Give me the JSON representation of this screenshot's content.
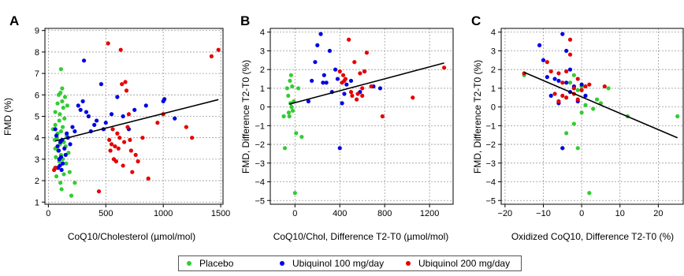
{
  "colors": {
    "placebo": "#33cc33",
    "ubiquinol100": "#0000e6",
    "ubiquinol200": "#e60000",
    "regression": "#000000",
    "grid": "#9a9a9a"
  },
  "legend": {
    "items": [
      {
        "label": "Placebo",
        "color": "#33cc33"
      },
      {
        "label": "Ubiquinol 100 mg/day",
        "color": "#0000e6"
      },
      {
        "label": "Ubiquinol 200 mg/day",
        "color": "#e60000"
      }
    ]
  },
  "chart_data": [
    {
      "panel": "A",
      "type": "scatter",
      "xlabel": "CoQ10/Cholesterol (µmol/mol)",
      "ylabel": "FMD (%)",
      "xlim": [
        -30,
        1520
      ],
      "ylim": [
        0.9,
        9.1
      ],
      "xticks": [
        0,
        500,
        1000,
        1500
      ],
      "yticks": [
        1,
        2,
        3,
        4,
        5,
        6,
        7,
        8,
        9
      ],
      "grid": true,
      "regression": [
        [
          60,
          3.85
        ],
        [
          1480,
          5.78
        ]
      ],
      "series": [
        {
          "name": "Placebo",
          "color": "#33cc33",
          "points": [
            [
              40,
              4.4
            ],
            [
              55,
              3.9
            ],
            [
              60,
              5.2
            ],
            [
              60,
              4.6
            ],
            [
              65,
              3.1
            ],
            [
              70,
              2.6
            ],
            [
              70,
              2.2
            ],
            [
              75,
              4.0
            ],
            [
              80,
              5.6
            ],
            [
              85,
              3.4
            ],
            [
              90,
              6.0
            ],
            [
              95,
              4.8
            ],
            [
              95,
              2.9
            ],
            [
              100,
              5.1
            ],
            [
              100,
              3.7
            ],
            [
              105,
              6.1
            ],
            [
              105,
              1.9
            ],
            [
              110,
              7.2
            ],
            [
              110,
              4.3
            ],
            [
              110,
              3.2
            ],
            [
              115,
              1.6
            ],
            [
              120,
              6.3
            ],
            [
              120,
              5.7
            ],
            [
              125,
              4.5
            ],
            [
              125,
              3.0
            ],
            [
              130,
              5.4
            ],
            [
              135,
              3.8
            ],
            [
              135,
              2.3
            ],
            [
              140,
              4.9
            ],
            [
              145,
              5.9
            ],
            [
              150,
              3.6
            ],
            [
              155,
              2.8
            ],
            [
              160,
              4.1
            ],
            [
              165,
              5.5
            ],
            [
              175,
              3.3
            ],
            [
              185,
              2.4
            ],
            [
              200,
              1.3
            ],
            [
              230,
              1.9
            ],
            [
              60,
              3.5
            ],
            [
              80,
              4.2
            ]
          ]
        },
        {
          "name": "Ubiquinol 100 mg/day",
          "color": "#0000e6",
          "points": [
            [
              60,
              4.4
            ],
            [
              70,
              4.1
            ],
            [
              80,
              3.6
            ],
            [
              85,
              2.6
            ],
            [
              90,
              3.4
            ],
            [
              95,
              3.0
            ],
            [
              100,
              2.7
            ],
            [
              105,
              3.8
            ],
            [
              110,
              3.1
            ],
            [
              115,
              2.5
            ],
            [
              120,
              3.9
            ],
            [
              125,
              2.8
            ],
            [
              140,
              3.5
            ],
            [
              150,
              3.2
            ],
            [
              160,
              4.2
            ],
            [
              170,
              4.0
            ],
            [
              190,
              3.7
            ],
            [
              210,
              4.5
            ],
            [
              230,
              4.3
            ],
            [
              260,
              5.5
            ],
            [
              280,
              5.3
            ],
            [
              300,
              5.7
            ],
            [
              310,
              7.6
            ],
            [
              330,
              5.2
            ],
            [
              350,
              5.0
            ],
            [
              370,
              4.3
            ],
            [
              400,
              4.6
            ],
            [
              420,
              4.8
            ],
            [
              460,
              6.5
            ],
            [
              480,
              4.4
            ],
            [
              500,
              4.7
            ],
            [
              550,
              5.1
            ],
            [
              600,
              5.9
            ],
            [
              650,
              5.0
            ],
            [
              700,
              4.4
            ],
            [
              750,
              5.3
            ],
            [
              850,
              5.5
            ],
            [
              1000,
              5.7
            ],
            [
              1010,
              5.8
            ],
            [
              1100,
              4.9
            ]
          ]
        },
        {
          "name": "Ubiquinol 200 mg/day",
          "color": "#e60000",
          "points": [
            [
              50,
              2.5
            ],
            [
              60,
              2.6
            ],
            [
              440,
              1.5
            ],
            [
              520,
              8.4
            ],
            [
              530,
              3.9
            ],
            [
              540,
              3.4
            ],
            [
              550,
              3.7
            ],
            [
              560,
              4.4
            ],
            [
              570,
              3.0
            ],
            [
              580,
              3.6
            ],
            [
              590,
              2.9
            ],
            [
              600,
              4.2
            ],
            [
              610,
              3.5
            ],
            [
              620,
              4.0
            ],
            [
              630,
              8.1
            ],
            [
              640,
              6.5
            ],
            [
              650,
              2.7
            ],
            [
              660,
              3.8
            ],
            [
              670,
              6.6
            ],
            [
              680,
              6.2
            ],
            [
              690,
              4.5
            ],
            [
              700,
              5.1
            ],
            [
              710,
              3.9
            ],
            [
              720,
              3.4
            ],
            [
              730,
              2.4
            ],
            [
              760,
              3.2
            ],
            [
              780,
              2.9
            ],
            [
              820,
              4.0
            ],
            [
              870,
              2.1
            ],
            [
              950,
              4.7
            ],
            [
              1000,
              5.1
            ],
            [
              1200,
              4.5
            ],
            [
              1250,
              4.0
            ],
            [
              1420,
              7.8
            ],
            [
              1480,
              8.1
            ]
          ]
        }
      ]
    },
    {
      "panel": "B",
      "type": "scatter",
      "xlabel": "CoQ10/Chol, Difference T2-T0 (µmol/mol)",
      "ylabel": "FMD, Difference T2-T0 (%)",
      "xlim": [
        -220,
        1410
      ],
      "ylim": [
        -5.2,
        4.2
      ],
      "xticks": [
        0,
        400,
        800,
        1200
      ],
      "yticks": [
        -5,
        -4,
        -3,
        -2,
        -1,
        0,
        1,
        2,
        3,
        4
      ],
      "grid": true,
      "regression": [
        [
          -50,
          0.15
        ],
        [
          1330,
          2.35
        ]
      ],
      "series": [
        {
          "name": "Placebo",
          "color": "#33cc33",
          "points": [
            [
              -100,
              -0.5
            ],
            [
              -90,
              -2.2
            ],
            [
              -70,
              1.0
            ],
            [
              -60,
              0.6
            ],
            [
              -55,
              -0.3
            ],
            [
              -50,
              -0.5
            ],
            [
              -45,
              1.4
            ],
            [
              -40,
              0.2
            ],
            [
              -35,
              1.7
            ],
            [
              -30,
              0.0
            ],
            [
              -20,
              -0.2
            ],
            [
              0,
              -4.6
            ],
            [
              10,
              -1.4
            ],
            [
              30,
              1.0
            ],
            [
              60,
              -1.6
            ],
            [
              -10,
              0.3
            ],
            [
              -25,
              1.1
            ]
          ]
        },
        {
          "name": "Ubiquinol 100 mg/day",
          "color": "#0000e6",
          "points": [
            [
              120,
              0.3
            ],
            [
              150,
              1.4
            ],
            [
              180,
              2.4
            ],
            [
              200,
              3.3
            ],
            [
              230,
              3.9
            ],
            [
              250,
              1.3
            ],
            [
              260,
              1.7
            ],
            [
              280,
              1.3
            ],
            [
              310,
              3.0
            ],
            [
              330,
              0.8
            ],
            [
              360,
              2.0
            ],
            [
              380,
              1.5
            ],
            [
              400,
              -2.2
            ],
            [
              420,
              0.2
            ],
            [
              440,
              0.7
            ],
            [
              460,
              1.2
            ],
            [
              500,
              1.4
            ],
            [
              580,
              0.8
            ],
            [
              620,
              1.9
            ],
            [
              700,
              1.1
            ],
            [
              760,
              1.0
            ]
          ]
        },
        {
          "name": "Ubiquinol 200 mg/day",
          "color": "#e60000",
          "points": [
            [
              400,
              1.9
            ],
            [
              420,
              1.3
            ],
            [
              430,
              1.7
            ],
            [
              450,
              1.5
            ],
            [
              480,
              3.6
            ],
            [
              500,
              0.8
            ],
            [
              510,
              0.6
            ],
            [
              530,
              2.4
            ],
            [
              550,
              0.4
            ],
            [
              560,
              0.7
            ],
            [
              580,
              1.8
            ],
            [
              600,
              1.0
            ],
            [
              620,
              1.9
            ],
            [
              640,
              2.9
            ],
            [
              680,
              1.1
            ],
            [
              780,
              -0.5
            ],
            [
              1050,
              0.5
            ],
            [
              1330,
              2.1
            ],
            [
              440,
              1.4
            ],
            [
              600,
              0.6
            ]
          ]
        }
      ]
    },
    {
      "panel": "C",
      "type": "scatter",
      "xlabel": "Oxidized CoQ10, Difference T2-T0 (%)",
      "ylabel": "FMD, Difference T2-T0 (%)",
      "xlim": [
        -21,
        26.5
      ],
      "ylim": [
        -5.2,
        4.2
      ],
      "xticks": [
        -20,
        -10,
        0,
        10,
        20
      ],
      "yticks": [
        -5,
        -4,
        -3,
        -2,
        -1,
        0,
        1,
        2,
        3,
        4
      ],
      "grid": true,
      "regression": [
        [
          -15,
          1.85
        ],
        [
          25,
          -1.65
        ]
      ],
      "series": [
        {
          "name": "Placebo",
          "color": "#33cc33",
          "points": [
            [
              -15,
              1.7
            ],
            [
              -5,
              -2.2
            ],
            [
              -3,
              1.3
            ],
            [
              -2,
              -0.9
            ],
            [
              -1,
              -2.2
            ],
            [
              -1,
              0.9
            ],
            [
              0,
              1.1
            ],
            [
              0,
              -0.3
            ],
            [
              1,
              0.1
            ],
            [
              2,
              -4.6
            ],
            [
              3,
              -0.1
            ],
            [
              4,
              0.4
            ],
            [
              5,
              0.2
            ],
            [
              7,
              1.0
            ],
            [
              12,
              -0.5
            ],
            [
              25,
              -0.5
            ],
            [
              -4,
              -1.4
            ],
            [
              -2,
              1.7
            ]
          ]
        },
        {
          "name": "Ubiquinol 100 mg/day",
          "color": "#0000e6",
          "points": [
            [
              -11,
              3.3
            ],
            [
              -10,
              2.5
            ],
            [
              -9,
              1.6
            ],
            [
              -8,
              0.6
            ],
            [
              -7,
              1.5
            ],
            [
              -6,
              1.4
            ],
            [
              -5,
              3.9
            ],
            [
              -5,
              -2.2
            ],
            [
              -4,
              3.0
            ],
            [
              -4,
              1.3
            ],
            [
              -3,
              0.8
            ],
            [
              -2,
              1.1
            ],
            [
              -1,
              0.3
            ],
            [
              0,
              1.2
            ],
            [
              1,
              0.6
            ],
            [
              -6,
              0.2
            ],
            [
              -3,
              2.0
            ]
          ]
        },
        {
          "name": "Ubiquinol 200 mg/day",
          "color": "#e60000",
          "points": [
            [
              -15,
              1.8
            ],
            [
              -9,
              2.4
            ],
            [
              -8,
              1.9
            ],
            [
              -7,
              0.7
            ],
            [
              -6,
              1.8
            ],
            [
              -5,
              0.6
            ],
            [
              -5,
              1.3
            ],
            [
              -4,
              1.9
            ],
            [
              -4,
              0.5
            ],
            [
              -3,
              3.6
            ],
            [
              -3,
              2.8
            ],
            [
              -2,
              0.7
            ],
            [
              -2,
              1.0
            ],
            [
              -1,
              1.5
            ],
            [
              -1,
              0.4
            ],
            [
              0,
              0.9
            ],
            [
              1,
              1.1
            ],
            [
              2,
              1.2
            ],
            [
              6,
              1.1
            ],
            [
              -6,
              0.3
            ]
          ]
        }
      ]
    }
  ]
}
